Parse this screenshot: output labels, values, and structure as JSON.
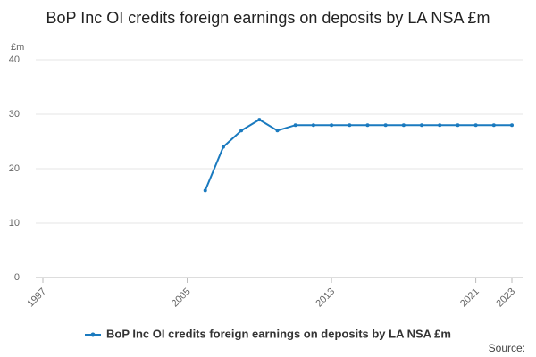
{
  "chart_data": {
    "type": "line",
    "title": "BoP Inc OI credits foreign earnings on deposits by LA NSA £m",
    "y_label": "£m",
    "source": "Source:",
    "x": [
      2006,
      2007,
      2008,
      2009,
      2010,
      2011,
      2012,
      2013,
      2014,
      2015,
      2016,
      2017,
      2018,
      2019,
      2020,
      2021,
      2022,
      2023
    ],
    "series": [
      {
        "name": "BoP Inc OI credits foreign earnings on deposits by LA NSA £m",
        "color": "#1a7abf",
        "values": [
          16,
          24,
          27,
          29,
          27,
          28,
          28,
          28,
          28,
          28,
          28,
          28,
          28,
          28,
          28,
          28,
          28,
          28
        ]
      }
    ],
    "xlim": [
      1997,
      2023
    ],
    "xticks": [
      1997,
      2005,
      2013,
      2021,
      2023
    ],
    "ylim": [
      0,
      40
    ],
    "yticks": [
      0,
      10,
      20,
      30,
      40
    ],
    "grid": true,
    "legend": "bottom"
  }
}
